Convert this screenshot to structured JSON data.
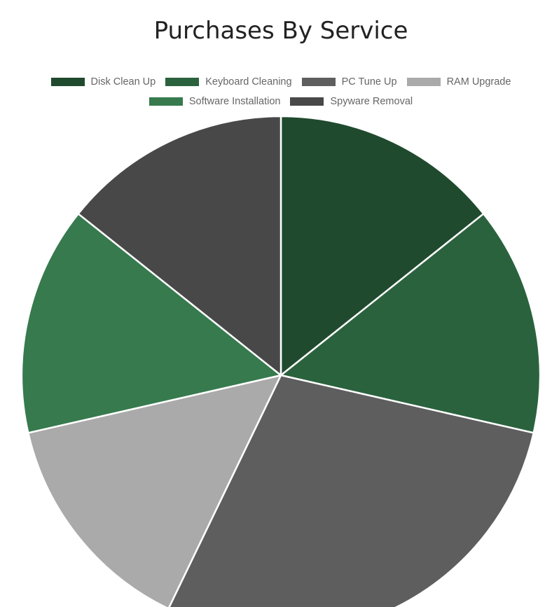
{
  "chart_data": {
    "type": "pie",
    "title": "Purchases By Service",
    "legend_position": "top",
    "slices": [
      {
        "label": "Disk Clean Up",
        "value": 1,
        "color": "#1f4a2e"
      },
      {
        "label": "Keyboard Cleaning",
        "value": 1,
        "color": "#2b623e"
      },
      {
        "label": "PC Tune Up",
        "value": 2,
        "color": "#5e5e5e"
      },
      {
        "label": "RAM Upgrade",
        "value": 1,
        "color": "#aaaaaa"
      },
      {
        "label": "Software Installation",
        "value": 1,
        "color": "#367a4e"
      },
      {
        "label": "Spyware Removal",
        "value": 1,
        "color": "#484848"
      }
    ]
  }
}
